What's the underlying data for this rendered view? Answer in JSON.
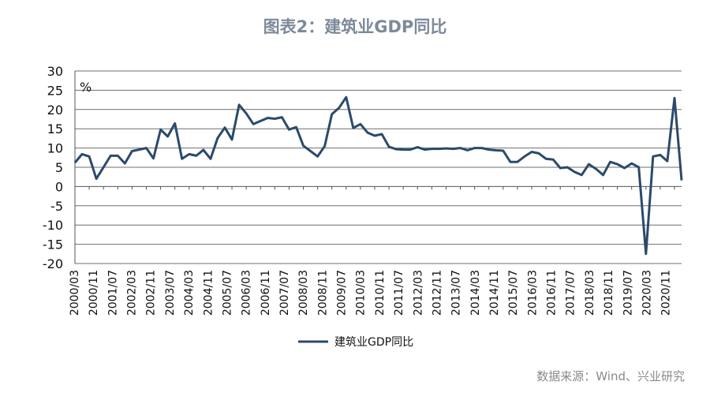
{
  "title": "图表2：建筑业GDP同比",
  "source": "数据来源：Wind、兴业研究",
  "chart_data": {
    "type": "line",
    "unit_label": "%",
    "ylim": [
      -20,
      30
    ],
    "yticks": [
      -20,
      -15,
      -10,
      -5,
      0,
      5,
      10,
      15,
      20,
      25,
      30
    ],
    "xtick_labels": [
      "2000/03",
      "2000/11",
      "2001/07",
      "2002/03",
      "2002/11",
      "2003/07",
      "2004/03",
      "2004/11",
      "2005/07",
      "2006/03",
      "2006/11",
      "2007/07",
      "2008/03",
      "2008/11",
      "2009/07",
      "2010/03",
      "2010/11",
      "2011/07",
      "2012/03",
      "2012/11",
      "2013/07",
      "2014/03",
      "2014/11",
      "2015/07",
      "2016/03",
      "2016/11",
      "2017/07",
      "2018/03",
      "2018/11",
      "2019/07",
      "2020/03",
      "2020/11"
    ],
    "grid": true,
    "legend_position": "bottom-left",
    "series": [
      {
        "name": "建筑业GDP同比",
        "color": "#2b4a6b",
        "values": [
          6.2,
          8.4,
          7.8,
          2.0,
          5.0,
          8.0,
          8.0,
          6.0,
          9.2,
          9.6,
          10.0,
          7.3,
          14.8,
          13.0,
          16.4,
          7.2,
          8.4,
          8.0,
          9.5,
          7.2,
          12.6,
          15.3,
          12.2,
          21.2,
          19.0,
          16.2,
          17.0,
          17.8,
          17.6,
          18.0,
          14.8,
          15.4,
          10.6,
          9.2,
          7.8,
          10.5,
          18.8,
          20.4,
          23.2,
          15.2,
          16.2,
          14.0,
          13.2,
          13.6,
          10.3,
          9.7,
          9.6,
          9.6,
          10.2,
          9.6,
          9.8,
          9.8,
          9.9,
          9.8,
          10.0,
          9.4,
          10.0,
          10.0,
          9.6,
          9.4,
          9.3,
          6.4,
          6.4,
          7.8,
          9.0,
          8.6,
          7.2,
          7.0,
          4.8,
          5.0,
          3.8,
          3.0,
          5.8,
          4.6,
          3.0,
          6.4,
          5.8,
          4.8,
          6.0,
          5.0,
          -17.5,
          7.8,
          8.2,
          6.6,
          23.0,
          1.6
        ]
      }
    ]
  }
}
